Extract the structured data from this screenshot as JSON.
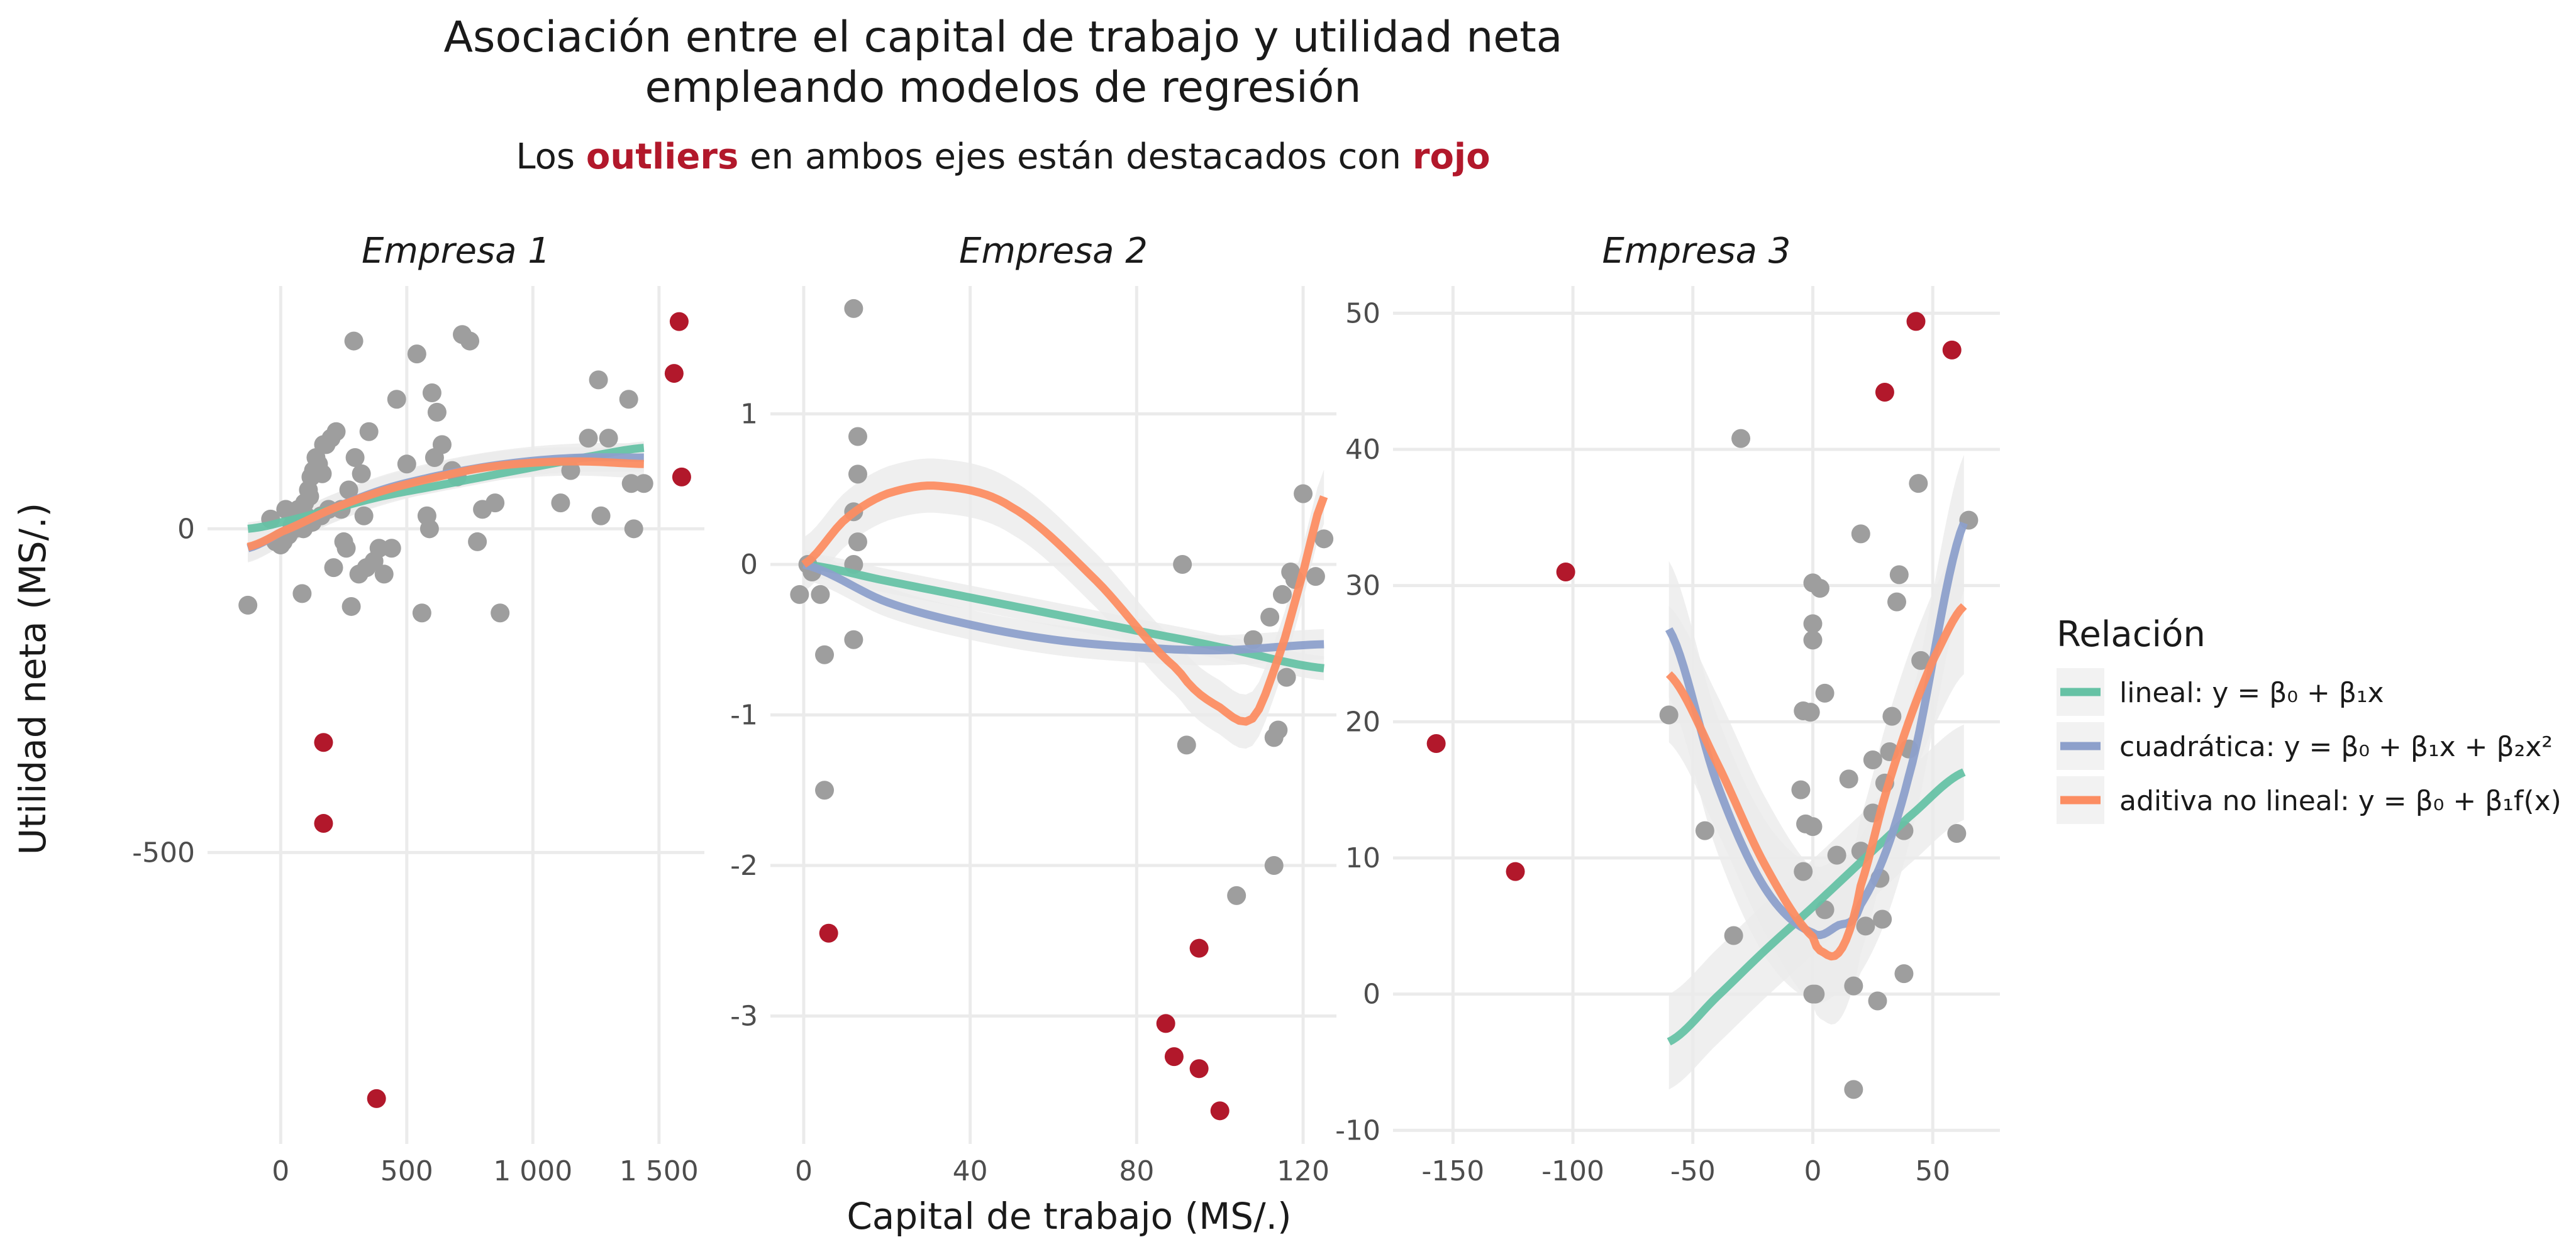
{
  "title_lines": [
    "Asociación entre el capital de trabajo y utilidad neta",
    "empleando modelos de regresión"
  ],
  "subtitle": {
    "pre": "Los ",
    "hl1": "outliers",
    "mid": " en ambos ejes están destacados con ",
    "hl2": "rojo"
  },
  "x_axis_title": "Capital de trabajo (MS/.)",
  "y_axis_title": "Utilidad neta (MS/.)",
  "colors": {
    "point": "#9e9e9e",
    "outlier": "#b2182b",
    "grid": "#ebebeb",
    "band": "#ebebeb",
    "lineal": "#66c2a5",
    "cuadratica": "#8da0cb",
    "aditiva": "#fc8d62"
  },
  "legend": {
    "title": "Relación",
    "items": [
      {
        "key": "lineal",
        "label": "lineal: y = β₀ + β₁x"
      },
      {
        "key": "cuadratica",
        "label": "cuadrática: y = β₀ + β₁x + β₂x²"
      },
      {
        "key": "aditiva",
        "label": "aditiva no lineal: y = β₀ + β₁f(x)"
      }
    ]
  },
  "chart_data": [
    {
      "type": "scatter",
      "title": "Empresa 1",
      "xlim": [
        -290,
        1680
      ],
      "ylim": [
        -950,
        375
      ],
      "xticks": [
        0,
        500,
        1000,
        1500
      ],
      "xtick_labels": [
        "0",
        "500",
        "1 000",
        "1 500"
      ],
      "yticks": [
        -500,
        0
      ],
      "ytick_labels": [
        "-500",
        "0"
      ],
      "points": [
        [
          -130,
          -118
        ],
        [
          -40,
          15
        ],
        [
          -20,
          -20
        ],
        [
          0,
          -25
        ],
        [
          10,
          -20
        ],
        [
          20,
          30
        ],
        [
          30,
          -10
        ],
        [
          45,
          5
        ],
        [
          55,
          0
        ],
        [
          60,
          10
        ],
        [
          70,
          30
        ],
        [
          80,
          15
        ],
        [
          85,
          -100
        ],
        [
          90,
          0
        ],
        [
          95,
          40
        ],
        [
          100,
          20
        ],
        [
          110,
          60
        ],
        [
          115,
          50
        ],
        [
          120,
          80
        ],
        [
          125,
          10
        ],
        [
          130,
          90
        ],
        [
          140,
          110
        ],
        [
          150,
          100
        ],
        [
          160,
          20
        ],
        [
          165,
          85
        ],
        [
          170,
          130
        ],
        [
          180,
          130
        ],
        [
          190,
          30
        ],
        [
          200,
          140
        ],
        [
          210,
          -60
        ],
        [
          220,
          150
        ],
        [
          240,
          30
        ],
        [
          250,
          -20
        ],
        [
          260,
          -30
        ],
        [
          270,
          60
        ],
        [
          280,
          -120
        ],
        [
          290,
          290
        ],
        [
          295,
          110
        ],
        [
          310,
          -70
        ],
        [
          320,
          85
        ],
        [
          330,
          20
        ],
        [
          340,
          -60
        ],
        [
          350,
          150
        ],
        [
          370,
          -50
        ],
        [
          390,
          -30
        ],
        [
          410,
          -70
        ],
        [
          440,
          -30
        ],
        [
          460,
          200
        ],
        [
          500,
          100
        ],
        [
          540,
          270
        ],
        [
          560,
          -130
        ],
        [
          580,
          20
        ],
        [
          590,
          0
        ],
        [
          600,
          210
        ],
        [
          610,
          110
        ],
        [
          620,
          180
        ],
        [
          640,
          130
        ],
        [
          680,
          90
        ],
        [
          700,
          80
        ],
        [
          720,
          300
        ],
        [
          750,
          290
        ],
        [
          780,
          -20
        ],
        [
          800,
          30
        ],
        [
          850,
          40
        ],
        [
          870,
          -130
        ],
        [
          1110,
          40
        ],
        [
          1150,
          90
        ],
        [
          1220,
          140
        ],
        [
          1260,
          230
        ],
        [
          1270,
          20
        ],
        [
          1300,
          140
        ],
        [
          1380,
          200
        ],
        [
          1390,
          70
        ],
        [
          1400,
          0
        ],
        [
          1440,
          70
        ]
      ],
      "outliers": [
        [
          170,
          -330
        ],
        [
          170,
          -455
        ],
        [
          380,
          -880
        ],
        [
          1560,
          240
        ],
        [
          1580,
          320
        ],
        [
          1590,
          80
        ]
      ],
      "series": [
        {
          "key": "lineal",
          "x": [
            -130,
            0,
            200,
            400,
            600,
            800,
            1000,
            1200,
            1440
          ],
          "y": [
            0,
            10,
            30,
            50,
            65,
            80,
            95,
            110,
            125
          ],
          "band": 10
        },
        {
          "key": "cuadratica",
          "x": [
            -130,
            0,
            200,
            400,
            600,
            800,
            1000,
            1200,
            1440
          ],
          "y": [
            -30,
            -5,
            30,
            60,
            80,
            95,
            105,
            110,
            110
          ],
          "band": 22
        },
        {
          "key": "aditiva",
          "x": [
            -130,
            0,
            200,
            400,
            600,
            800,
            1000,
            1200,
            1440
          ],
          "y": [
            -28,
            -5,
            30,
            58,
            78,
            94,
            102,
            104,
            100
          ],
          "band": 22
        }
      ]
    },
    {
      "type": "scatter",
      "title": "Empresa 2",
      "xlim": [
        -8,
        128
      ],
      "ylim": [
        -3.85,
        1.85
      ],
      "xticks": [
        0,
        40,
        80,
        120
      ],
      "xtick_labels": [
        "0",
        "40",
        "80",
        "120"
      ],
      "yticks": [
        -3,
        -2,
        -1,
        0,
        1
      ],
      "ytick_labels": [
        "-3",
        "-2",
        "-1",
        "0",
        "1"
      ],
      "points": [
        [
          -1,
          -0.2
        ],
        [
          1,
          0
        ],
        [
          2,
          -0.05
        ],
        [
          4,
          -0.2
        ],
        [
          5,
          -0.6
        ],
        [
          5,
          -1.5
        ],
        [
          12,
          1.7
        ],
        [
          12,
          0.35
        ],
        [
          12,
          0
        ],
        [
          12,
          -0.5
        ],
        [
          13,
          0.85
        ],
        [
          13,
          0.6
        ],
        [
          13,
          0.15
        ],
        [
          91,
          0
        ],
        [
          92,
          -1.2
        ],
        [
          104,
          -2.2
        ],
        [
          108,
          -0.5
        ],
        [
          112,
          -0.35
        ],
        [
          113,
          -1.15
        ],
        [
          113,
          -2.0
        ],
        [
          114,
          -1.1
        ],
        [
          115,
          -0.2
        ],
        [
          116,
          -0.75
        ],
        [
          117,
          -0.05
        ],
        [
          118,
          -0.1
        ],
        [
          120,
          0.47
        ],
        [
          123,
          -0.08
        ],
        [
          125,
          0.17
        ]
      ],
      "outliers": [
        [
          6,
          -2.45
        ],
        [
          87,
          -3.05
        ],
        [
          89,
          -3.27
        ],
        [
          95,
          -2.55
        ],
        [
          95,
          -3.35
        ],
        [
          100,
          -3.63
        ]
      ],
      "series": [
        {
          "key": "lineal",
          "x": [
            0,
            20,
            40,
            60,
            80,
            100,
            125
          ],
          "y": [
            0,
            -0.11,
            -0.22,
            -0.33,
            -0.44,
            -0.55,
            -0.69
          ],
          "band": 0.08
        },
        {
          "key": "cuadratica",
          "x": [
            0,
            20,
            40,
            60,
            80,
            100,
            125
          ],
          "y": [
            0,
            -0.25,
            -0.4,
            -0.5,
            -0.55,
            -0.57,
            -0.53
          ],
          "band": 0.1
        },
        {
          "key": "aditiva",
          "x": [
            0,
            10,
            20,
            33,
            50,
            70,
            90,
            100,
            108,
            115,
            120,
            125
          ],
          "y": [
            0,
            0.3,
            0.47,
            0.52,
            0.38,
            -0.1,
            -0.7,
            -0.95,
            -1.02,
            -0.55,
            -0.05,
            0.45
          ],
          "band": 0.18
        }
      ]
    },
    {
      "type": "scatter",
      "title": "Empresa 3",
      "xlim": [
        -175,
        78
      ],
      "ylim": [
        -11,
        52
      ],
      "xticks": [
        -150,
        -100,
        -50,
        0,
        50
      ],
      "xtick_labels": [
        "-150",
        "-100",
        "-50",
        "0",
        "50"
      ],
      "yticks": [
        -10,
        0,
        10,
        20,
        30,
        40,
        50
      ],
      "ytick_labels": [
        "-10",
        "0",
        "10",
        "20",
        "30",
        "40",
        "50"
      ],
      "points": [
        [
          -60,
          20.5
        ],
        [
          -45,
          12
        ],
        [
          -33,
          4.3
        ],
        [
          -30,
          40.8
        ],
        [
          -5,
          15
        ],
        [
          -4,
          20.8
        ],
        [
          -4,
          9
        ],
        [
          -3,
          12.5
        ],
        [
          -1,
          20.7
        ],
        [
          0,
          12.3
        ],
        [
          0,
          30.2
        ],
        [
          0,
          27.2
        ],
        [
          0,
          26
        ],
        [
          0,
          0
        ],
        [
          1,
          0
        ],
        [
          3,
          29.8
        ],
        [
          5,
          22.1
        ],
        [
          5,
          6.2
        ],
        [
          10,
          10.2
        ],
        [
          15,
          15.8
        ],
        [
          17,
          0.6
        ],
        [
          17,
          -7
        ],
        [
          20,
          33.8
        ],
        [
          20,
          10.5
        ],
        [
          22,
          5
        ],
        [
          25,
          17.2
        ],
        [
          25,
          13.3
        ],
        [
          27,
          -0.5
        ],
        [
          28,
          8.5
        ],
        [
          29,
          5.5
        ],
        [
          30,
          15.5
        ],
        [
          32,
          17.8
        ],
        [
          33,
          20.4
        ],
        [
          35,
          28.8
        ],
        [
          36,
          30.8
        ],
        [
          38,
          1.5
        ],
        [
          38,
          12
        ],
        [
          40,
          18
        ],
        [
          44,
          37.5
        ],
        [
          45,
          24.5
        ],
        [
          60,
          11.8
        ],
        [
          65,
          34.8
        ]
      ],
      "outliers": [
        [
          -157,
          18.4
        ],
        [
          -124,
          9
        ],
        [
          -103,
          31
        ],
        [
          30,
          44.2
        ],
        [
          43,
          49.4
        ],
        [
          58,
          47.3
        ]
      ],
      "series": [
        {
          "key": "lineal",
          "x": [
            -60,
            -40,
            -20,
            0,
            20,
            40,
            63
          ],
          "y": [
            -3.5,
            -0.2,
            3.2,
            6.4,
            9.7,
            13,
            16.3
          ],
          "band": 3.5
        },
        {
          "key": "cuadratica",
          "x": [
            -60,
            -40,
            -20,
            0,
            10,
            20,
            40,
            63
          ],
          "y": [
            26.8,
            15.5,
            7.8,
            4.5,
            5,
            6.6,
            16,
            34.6
          ],
          "band": 5
        },
        {
          "key": "aditiva",
          "x": [
            -60,
            -40,
            -20,
            0,
            5,
            10,
            15,
            20,
            30,
            40,
            50,
            63
          ],
          "y": [
            23.5,
            17,
            9.5,
            4.2,
            3,
            2.9,
            4.5,
            8,
            14.5,
            20,
            24.5,
            28.5
          ],
          "band": 5
        }
      ]
    }
  ]
}
